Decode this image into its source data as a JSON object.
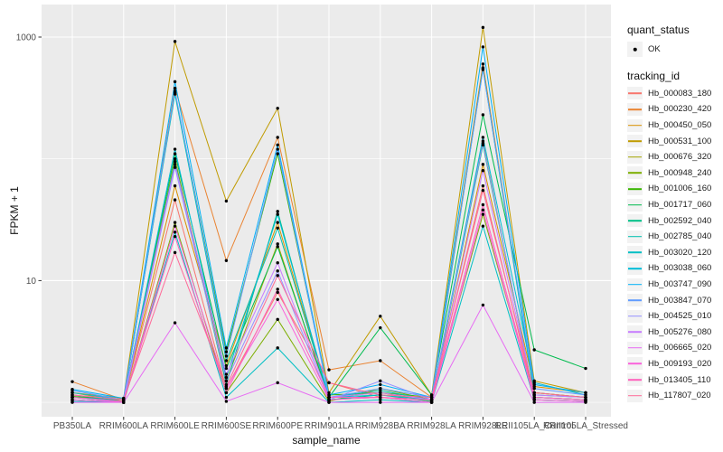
{
  "colors": {
    "background": "#FFFFFF",
    "panel_bg": "#EBEBEB",
    "gridline": "#FFFFFF",
    "tick_mark": "#333333",
    "tick_label": "#4D4D4D",
    "axis_title": "#111111",
    "legend_key_bg": "#F2F2F2",
    "point": "#000000"
  },
  "chart_data": {
    "type": "line",
    "title": "",
    "xlabel": "sample_name",
    "ylabel": "FPKM + 1",
    "y_scale": "log10",
    "grid": true,
    "legend_position": "right",
    "ylim": [
      0.85,
      1500
    ],
    "y_ticks": [
      {
        "value": 1000,
        "label": "1000"
      },
      {
        "value": 10,
        "label": "10"
      }
    ],
    "y_gridlines_major": [
      10,
      1000
    ],
    "y_gridlines_minor": [
      1,
      100
    ],
    "categories": [
      "PB350LA",
      "RRIM600LA",
      "RRIM600LE",
      "RRIM600SE",
      "RRIM600PE",
      "RRIM901LA",
      "RRIM928BA",
      "RRIM928LA",
      "RRIM928LE",
      "RRII105LA_Control",
      "RRII105LA_Stressed"
    ],
    "legend": {
      "quant_status": {
        "title": "quant_status",
        "items": [
          {
            "label": "OK",
            "marker": "point"
          }
        ]
      },
      "tracking_id": {
        "title": "tracking_id"
      }
    },
    "series": [
      {
        "name": "Hb_000083_180",
        "color": "#F8766D",
        "values": [
          1.1,
          1.02,
          46,
          1.3,
          8.0,
          1.45,
          1.1,
          1.05,
          60,
          1.1,
          1.05
        ]
      },
      {
        "name": "Hb_000230_420",
        "color": "#EA8331",
        "values": [
          1.48,
          1.05,
          380,
          14.6,
          150,
          1.85,
          2.2,
          1.1,
          600,
          1.2,
          1.1
        ]
      },
      {
        "name": "Hb_000450_050",
        "color": "#D89000",
        "values": [
          1.2,
          1.02,
          60,
          2.0,
          30,
          1.1,
          1.2,
          1.02,
          90,
          1.35,
          1.2
        ]
      },
      {
        "name": "Hb_000531_100",
        "color": "#C09B00",
        "values": [
          1.2,
          1.08,
          920,
          45,
          260,
          1.2,
          5.1,
          1.15,
          1200,
          1.5,
          1.2
        ]
      },
      {
        "name": "Hb_000676_320",
        "color": "#A3A500",
        "values": [
          1.05,
          1.0,
          100,
          1.5,
          20,
          1.05,
          1.1,
          1.0,
          140,
          1.05,
          1.02
        ]
      },
      {
        "name": "Hb_000948_240",
        "color": "#7CAE00",
        "values": [
          1.1,
          1.0,
          30,
          1.2,
          4.8,
          1.02,
          1.3,
          1.05,
          35,
          1.1,
          1.05
        ]
      },
      {
        "name": "Hb_001006_160",
        "color": "#39B600",
        "values": [
          1.12,
          1.05,
          350,
          2.6,
          110,
          1.15,
          1.2,
          1.1,
          560,
          1.2,
          1.1
        ]
      },
      {
        "name": "Hb_001717_060",
        "color": "#00BB4E",
        "values": [
          1.15,
          1.02,
          110,
          1.9,
          19,
          1.1,
          4.1,
          1.15,
          230,
          2.7,
          1.9
        ]
      },
      {
        "name": "Hb_002592_040",
        "color": "#00C087",
        "values": [
          1.05,
          1.0,
          95,
          1.4,
          37,
          1.05,
          1.15,
          1.02,
          130,
          1.1,
          1.05
        ]
      },
      {
        "name": "Hb_002785_040",
        "color": "#00C0AF",
        "values": [
          1.1,
          1.05,
          340,
          2.2,
          27,
          1.1,
          1.25,
          1.05,
          550,
          1.15,
          1.1
        ]
      },
      {
        "name": "Hb_003020_120",
        "color": "#00BFC4",
        "values": [
          1.02,
          1.0,
          25,
          1.1,
          2.8,
          1.0,
          1.05,
          1.0,
          28,
          1.05,
          1.02
        ]
      },
      {
        "name": "Hb_003038_060",
        "color": "#00BCD8",
        "values": [
          1.2,
          1.05,
          120,
          1.6,
          35,
          1.1,
          1.15,
          1.05,
          150,
          1.45,
          1.15
        ]
      },
      {
        "name": "Hb_003747_090",
        "color": "#00B0F6",
        "values": [
          1.28,
          1.08,
          430,
          2.8,
          130,
          1.15,
          1.4,
          1.1,
          830,
          1.4,
          1.2
        ]
      },
      {
        "name": "Hb_003847_070",
        "color": "#619CFF",
        "values": [
          1.25,
          1.05,
          360,
          2.4,
          120,
          1.1,
          1.3,
          1.1,
          540,
          1.3,
          1.15
        ]
      },
      {
        "name": "Hb_004525_010",
        "color": "#9590FF",
        "values": [
          1.1,
          1.0,
          85,
          1.5,
          12,
          1.05,
          1.5,
          1.05,
          135,
          1.1,
          1.05
        ]
      },
      {
        "name": "Hb_005276_080",
        "color": "#C77CFF",
        "values": [
          1.15,
          1.05,
          90,
          1.7,
          14,
          1.1,
          1.2,
          1.05,
          80,
          1.15,
          1.1
        ]
      },
      {
        "name": "Hb_006665_020",
        "color": "#E76BF3",
        "values": [
          1.0,
          1.0,
          4.5,
          1.02,
          1.45,
          1.0,
          1.0,
          1.0,
          6.3,
          1.0,
          1.0
        ]
      },
      {
        "name": "Hb_009193_020",
        "color": "#FA62DB",
        "values": [
          1.05,
          1.0,
          28,
          1.3,
          7.0,
          1.05,
          1.1,
          1.0,
          38,
          1.05,
          1.02
        ]
      },
      {
        "name": "Hb_013405_110",
        "color": "#FF62BC",
        "values": [
          1.1,
          1.02,
          23,
          1.2,
          8.5,
          1.1,
          1.1,
          1.05,
          42,
          1.1,
          1.05
        ]
      },
      {
        "name": "Hb_117807_020",
        "color": "#FF6A98",
        "values": [
          1.15,
          1.05,
          17,
          1.35,
          11,
          1.45,
          1.15,
          1.1,
          55,
          1.2,
          1.1
        ]
      }
    ]
  }
}
